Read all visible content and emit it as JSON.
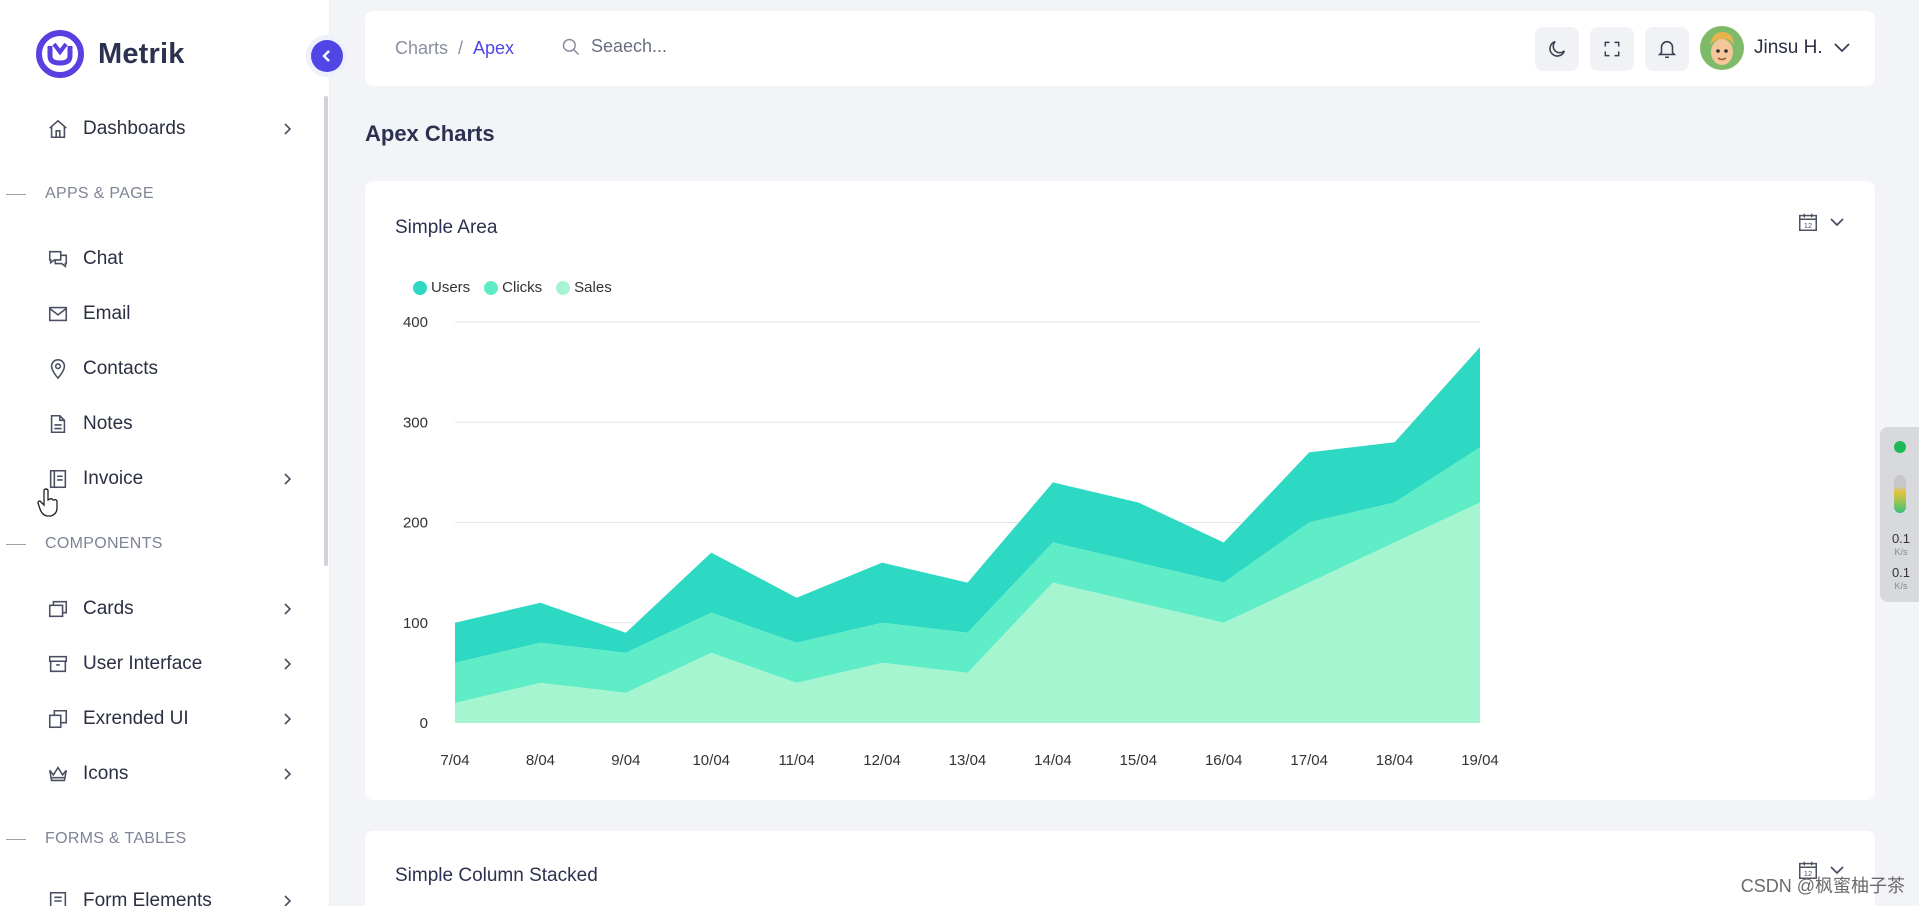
{
  "app": {
    "brand": "Metrik"
  },
  "sidebar": {
    "items": [
      {
        "label": "Dashboards"
      },
      {
        "label": "Chat"
      },
      {
        "label": "Email"
      },
      {
        "label": "Contacts"
      },
      {
        "label": "Notes"
      },
      {
        "label": "Invoice"
      },
      {
        "label": "Cards"
      },
      {
        "label": "User Interface"
      },
      {
        "label": "Exrended UI"
      },
      {
        "label": "Icons"
      },
      {
        "label": "Form Elements"
      }
    ],
    "sections": [
      {
        "label": "APPS & PAGE"
      },
      {
        "label": "COMPONENTS"
      },
      {
        "label": "FORMS & TABLES"
      }
    ]
  },
  "header": {
    "breadcrumb": {
      "parent": "Charts",
      "separator": "/",
      "current": "Apex"
    },
    "search_placeholder": "Seaech...",
    "user_name": "Jinsu H."
  },
  "page": {
    "title": "Apex Charts"
  },
  "cards": [
    {
      "title": "Simple Area",
      "calendar_day": "12"
    },
    {
      "title": "Simple Column Stacked",
      "calendar_day": "12"
    }
  ],
  "network": {
    "upload": "0.1",
    "download": "0.1",
    "unit": "K/s"
  },
  "watermark": "CSDN @枫蜜柚子茶",
  "colors": {
    "accent": "#4f46e5",
    "users": "#2ed9c3",
    "clicks": "#5eedc6",
    "sales": "#a5f5d0"
  },
  "chart_data": {
    "type": "area",
    "title": "Simple Area",
    "stacked": true,
    "categories": [
      "7/04",
      "8/04",
      "9/04",
      "10/04",
      "11/04",
      "12/04",
      "13/04",
      "14/04",
      "15/04",
      "16/04",
      "17/04",
      "18/04",
      "19/04"
    ],
    "series": [
      {
        "name": "Users",
        "values": [
          40,
          40,
          20,
          60,
          45,
          60,
          50,
          60,
          60,
          40,
          70,
          60,
          100
        ]
      },
      {
        "name": "Clicks",
        "values": [
          40,
          40,
          40,
          40,
          40,
          40,
          40,
          40,
          40,
          40,
          60,
          40,
          55
        ]
      },
      {
        "name": "Sales",
        "values": [
          20,
          40,
          30,
          70,
          40,
          60,
          50,
          140,
          120,
          100,
          140,
          180,
          220
        ]
      }
    ],
    "ylim": [
      0,
      400
    ],
    "yticks": [
      "0",
      "100",
      "200",
      "300",
      "400"
    ],
    "legend": "top-left",
    "grid": true
  }
}
